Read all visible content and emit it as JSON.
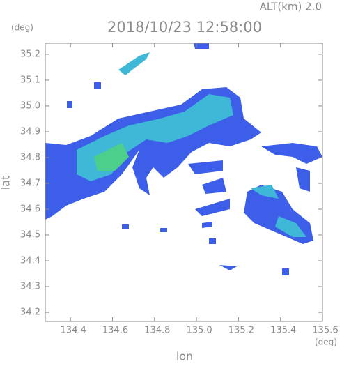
{
  "chart_data": {
    "type": "radar-map",
    "altitude_label": "ALT(km) 2.0",
    "title": "2018/10/23 12:58:00",
    "x_unit": "(deg)",
    "y_unit": "(deg)",
    "xlabel": "lon",
    "ylabel": "lat",
    "xlim": [
      134.28,
      135.6
    ],
    "ylim": [
      34.165,
      35.243
    ],
    "xticks": [
      134.4,
      134.6,
      134.8,
      {
        "value": 135,
        "label": "135.0"
      },
      135.2,
      135.4,
      135.6
    ],
    "yticks": [
      34.2,
      34.3,
      34.4,
      34.5,
      34.6,
      34.7,
      34.8,
      34.9,
      {
        "value": 35,
        "label": "35.0"
      },
      35.1,
      35.2
    ]
  }
}
